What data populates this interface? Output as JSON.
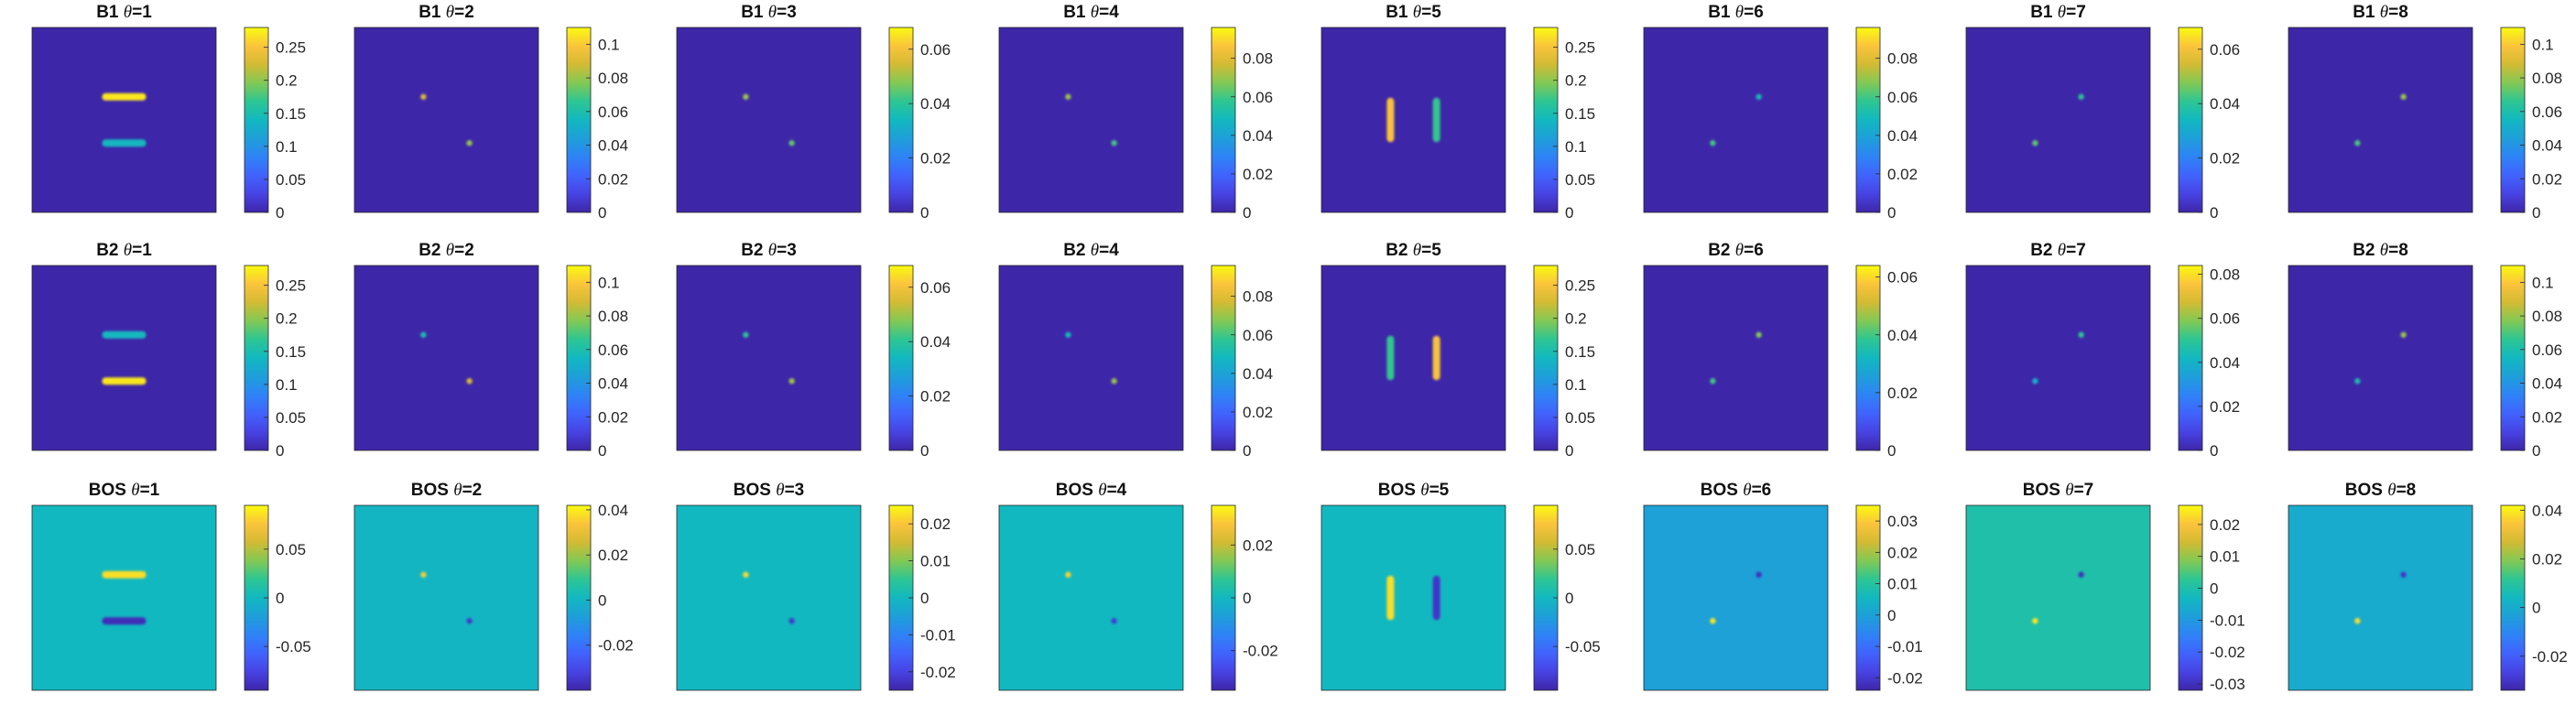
{
  "chart_data": {
    "type": "heatmap",
    "layout": "3 rows x 8 columns of square image panels, each with its own vertical colorbar on the right",
    "colormap": "parula",
    "axes_ticks_visible": false,
    "rows": [
      {
        "label": "B1",
        "panels": [
          {
            "theta": "1",
            "background": 0,
            "clim": [
              0,
              0.28
            ],
            "cbar_ticks": [
              "0",
              "0.05",
              "0.1",
              "0.15",
              "0.2",
              "0.25"
            ],
            "cbar_tick_values": [
              0,
              0.05,
              0.1,
              0.15,
              0.2,
              0.25
            ],
            "features": [
              {
                "shape": "hbar",
                "cx": 0.5,
                "cy": 0.375,
                "len": 0.24,
                "value": 0.27
              },
              {
                "shape": "hbar",
                "cx": 0.5,
                "cy": 0.625,
                "len": 0.24,
                "value": 0.14
              }
            ]
          },
          {
            "theta": "2",
            "background": 0,
            "clim": [
              0,
              0.11
            ],
            "cbar_ticks": [
              "0",
              "0.02",
              "0.04",
              "0.06",
              "0.08",
              "0.1"
            ],
            "cbar_tick_values": [
              0,
              0.02,
              0.04,
              0.06,
              0.08,
              0.1
            ],
            "features": [
              {
                "shape": "dot",
                "cx": 0.375,
                "cy": 0.375,
                "value": 0.09
              },
              {
                "shape": "dot",
                "cx": 0.625,
                "cy": 0.625,
                "value": 0.08
              }
            ]
          },
          {
            "theta": "3",
            "background": 0,
            "clim": [
              0,
              0.068
            ],
            "cbar_ticks": [
              "0",
              "0.02",
              "0.04",
              "0.06"
            ],
            "cbar_tick_values": [
              0,
              0.02,
              0.04,
              0.06
            ],
            "features": [
              {
                "shape": "dot",
                "cx": 0.375,
                "cy": 0.375,
                "value": 0.05
              },
              {
                "shape": "dot",
                "cx": 0.625,
                "cy": 0.625,
                "value": 0.045
              }
            ]
          },
          {
            "theta": "4",
            "background": 0,
            "clim": [
              0,
              0.096
            ],
            "cbar_ticks": [
              "0",
              "0.02",
              "0.04",
              "0.06",
              "0.08"
            ],
            "cbar_tick_values": [
              0,
              0.02,
              0.04,
              0.06,
              0.08
            ],
            "features": [
              {
                "shape": "dot",
                "cx": 0.375,
                "cy": 0.375,
                "value": 0.07
              },
              {
                "shape": "dot",
                "cx": 0.625,
                "cy": 0.625,
                "value": 0.06
              }
            ]
          },
          {
            "theta": "5",
            "background": 0,
            "clim": [
              0,
              0.28
            ],
            "cbar_ticks": [
              "0",
              "0.05",
              "0.1",
              "0.15",
              "0.2",
              "0.25"
            ],
            "cbar_tick_values": [
              0,
              0.05,
              0.1,
              0.15,
              0.2,
              0.25
            ],
            "features": [
              {
                "shape": "vbar",
                "cx": 0.375,
                "cy": 0.5,
                "len": 0.24,
                "value": 0.25
              },
              {
                "shape": "vbar",
                "cx": 0.625,
                "cy": 0.5,
                "len": 0.24,
                "value": 0.17
              }
            ]
          },
          {
            "theta": "6",
            "background": 0,
            "clim": [
              0,
              0.096
            ],
            "cbar_ticks": [
              "0",
              "0.02",
              "0.04",
              "0.06",
              "0.08"
            ],
            "cbar_tick_values": [
              0,
              0.02,
              0.04,
              0.06,
              0.08
            ],
            "features": [
              {
                "shape": "dot",
                "cx": 0.625,
                "cy": 0.375,
                "value": 0.05
              },
              {
                "shape": "dot",
                "cx": 0.375,
                "cy": 0.625,
                "value": 0.06
              }
            ]
          },
          {
            "theta": "7",
            "background": 0,
            "clim": [
              0,
              0.068
            ],
            "cbar_ticks": [
              "0",
              "0.02",
              "0.04",
              "0.06"
            ],
            "cbar_tick_values": [
              0,
              0.02,
              0.04,
              0.06
            ],
            "features": [
              {
                "shape": "dot",
                "cx": 0.625,
                "cy": 0.375,
                "value": 0.04
              },
              {
                "shape": "dot",
                "cx": 0.375,
                "cy": 0.625,
                "value": 0.045
              }
            ]
          },
          {
            "theta": "8",
            "background": 0,
            "clim": [
              0,
              0.11
            ],
            "cbar_ticks": [
              "0",
              "0.02",
              "0.04",
              "0.06",
              "0.08",
              "0.1"
            ],
            "cbar_tick_values": [
              0,
              0.02,
              0.04,
              0.06,
              0.08,
              0.1
            ],
            "features": [
              {
                "shape": "dot",
                "cx": 0.625,
                "cy": 0.375,
                "value": 0.08
              },
              {
                "shape": "dot",
                "cx": 0.375,
                "cy": 0.625,
                "value": 0.07
              }
            ]
          }
        ]
      },
      {
        "label": "B2",
        "panels": [
          {
            "theta": "1",
            "background": 0,
            "clim": [
              0,
              0.28
            ],
            "cbar_ticks": [
              "0",
              "0.05",
              "0.1",
              "0.15",
              "0.2",
              "0.25"
            ],
            "cbar_tick_values": [
              0,
              0.05,
              0.1,
              0.15,
              0.2,
              0.25
            ],
            "features": [
              {
                "shape": "hbar",
                "cx": 0.5,
                "cy": 0.375,
                "len": 0.24,
                "value": 0.14
              },
              {
                "shape": "hbar",
                "cx": 0.5,
                "cy": 0.625,
                "len": 0.24,
                "value": 0.27
              }
            ]
          },
          {
            "theta": "2",
            "background": 0,
            "clim": [
              0,
              0.11
            ],
            "cbar_ticks": [
              "0",
              "0.02",
              "0.04",
              "0.06",
              "0.08",
              "0.1"
            ],
            "cbar_tick_values": [
              0,
              0.02,
              0.04,
              0.06,
              0.08,
              0.1
            ],
            "features": [
              {
                "shape": "dot",
                "cx": 0.375,
                "cy": 0.375,
                "value": 0.06
              },
              {
                "shape": "dot",
                "cx": 0.625,
                "cy": 0.625,
                "value": 0.09
              }
            ]
          },
          {
            "theta": "3",
            "background": 0,
            "clim": [
              0,
              0.068
            ],
            "cbar_ticks": [
              "0",
              "0.02",
              "0.04",
              "0.06"
            ],
            "cbar_tick_values": [
              0,
              0.02,
              0.04,
              0.06
            ],
            "features": [
              {
                "shape": "dot",
                "cx": 0.375,
                "cy": 0.375,
                "value": 0.04
              },
              {
                "shape": "dot",
                "cx": 0.625,
                "cy": 0.625,
                "value": 0.05
              }
            ]
          },
          {
            "theta": "4",
            "background": 0,
            "clim": [
              0,
              0.096
            ],
            "cbar_ticks": [
              "0",
              "0.02",
              "0.04",
              "0.06",
              "0.08"
            ],
            "cbar_tick_values": [
              0,
              0.02,
              0.04,
              0.06,
              0.08
            ],
            "features": [
              {
                "shape": "dot",
                "cx": 0.375,
                "cy": 0.375,
                "value": 0.05
              },
              {
                "shape": "dot",
                "cx": 0.625,
                "cy": 0.625,
                "value": 0.07
              }
            ]
          },
          {
            "theta": "5",
            "background": 0,
            "clim": [
              0,
              0.28
            ],
            "cbar_ticks": [
              "0",
              "0.05",
              "0.1",
              "0.15",
              "0.2",
              "0.25"
            ],
            "cbar_tick_values": [
              0,
              0.05,
              0.1,
              0.15,
              0.2,
              0.25
            ],
            "features": [
              {
                "shape": "vbar",
                "cx": 0.375,
                "cy": 0.5,
                "len": 0.24,
                "value": 0.17
              },
              {
                "shape": "vbar",
                "cx": 0.625,
                "cy": 0.5,
                "len": 0.24,
                "value": 0.25
              }
            ]
          },
          {
            "theta": "6",
            "background": 0,
            "clim": [
              0,
              0.064
            ],
            "cbar_ticks": [
              "0",
              "0.02",
              "0.04",
              "0.06"
            ],
            "cbar_tick_values": [
              0,
              0.02,
              0.04,
              0.06
            ],
            "features": [
              {
                "shape": "dot",
                "cx": 0.625,
                "cy": 0.375,
                "value": 0.045
              },
              {
                "shape": "dot",
                "cx": 0.375,
                "cy": 0.625,
                "value": 0.04
              }
            ]
          },
          {
            "theta": "7",
            "background": 0,
            "clim": [
              0,
              0.084
            ],
            "cbar_ticks": [
              "0",
              "0.02",
              "0.04",
              "0.06",
              "0.08"
            ],
            "cbar_tick_values": [
              0,
              0.02,
              0.04,
              0.06,
              0.08
            ],
            "features": [
              {
                "shape": "dot",
                "cx": 0.625,
                "cy": 0.375,
                "value": 0.05
              },
              {
                "shape": "dot",
                "cx": 0.375,
                "cy": 0.625,
                "value": 0.04
              }
            ]
          },
          {
            "theta": "8",
            "background": 0,
            "clim": [
              0,
              0.11
            ],
            "cbar_ticks": [
              "0",
              "0.02",
              "0.04",
              "0.06",
              "0.08",
              "0.1"
            ],
            "cbar_tick_values": [
              0,
              0.02,
              0.04,
              0.06,
              0.08,
              0.1
            ],
            "features": [
              {
                "shape": "dot",
                "cx": 0.625,
                "cy": 0.375,
                "value": 0.08
              },
              {
                "shape": "dot",
                "cx": 0.375,
                "cy": 0.625,
                "value": 0.06
              }
            ]
          }
        ]
      },
      {
        "label": "BOS",
        "panels": [
          {
            "theta": "1",
            "background": 0,
            "clim": [
              -0.095,
              0.095
            ],
            "cbar_ticks": [
              "-0.05",
              "0",
              "0.05"
            ],
            "cbar_tick_values": [
              -0.05,
              0,
              0.05
            ],
            "features": [
              {
                "shape": "hbar",
                "cx": 0.5,
                "cy": 0.375,
                "len": 0.24,
                "value": 0.085
              },
              {
                "shape": "hbar",
                "cx": 0.5,
                "cy": 0.625,
                "len": 0.24,
                "value": -0.09
              }
            ]
          },
          {
            "theta": "2",
            "background": 0,
            "clim": [
              -0.04,
              0.042
            ],
            "cbar_ticks": [
              "-0.02",
              "0",
              "0.02",
              "0.04"
            ],
            "cbar_tick_values": [
              -0.02,
              0,
              0.02,
              0.04
            ],
            "features": [
              {
                "shape": "dot",
                "cx": 0.375,
                "cy": 0.375,
                "value": 0.035
              },
              {
                "shape": "dot",
                "cx": 0.625,
                "cy": 0.625,
                "value": -0.035
              }
            ]
          },
          {
            "theta": "3",
            "background": 0,
            "clim": [
              -0.025,
              0.025
            ],
            "cbar_ticks": [
              "-0.02",
              "-0.01",
              "0",
              "0.01",
              "0.02"
            ],
            "cbar_tick_values": [
              -0.02,
              -0.01,
              0,
              0.01,
              0.02
            ],
            "features": [
              {
                "shape": "dot",
                "cx": 0.375,
                "cy": 0.375,
                "value": 0.022
              },
              {
                "shape": "dot",
                "cx": 0.625,
                "cy": 0.625,
                "value": -0.022
              }
            ]
          },
          {
            "theta": "4",
            "background": 0,
            "clim": [
              -0.035,
              0.035
            ],
            "cbar_ticks": [
              "-0.02",
              "0",
              "0.02"
            ],
            "cbar_tick_values": [
              -0.02,
              0,
              0.02
            ],
            "features": [
              {
                "shape": "dot",
                "cx": 0.375,
                "cy": 0.375,
                "value": 0.03
              },
              {
                "shape": "dot",
                "cx": 0.625,
                "cy": 0.625,
                "value": -0.03
              }
            ]
          },
          {
            "theta": "5",
            "background": 0,
            "clim": [
              -0.095,
              0.095
            ],
            "cbar_ticks": [
              "-0.05",
              "0",
              "0.05"
            ],
            "cbar_tick_values": [
              -0.05,
              0,
              0.05
            ],
            "features": [
              {
                "shape": "vbar",
                "cx": 0.375,
                "cy": 0.5,
                "len": 0.24,
                "value": 0.085
              },
              {
                "shape": "vbar",
                "cx": 0.625,
                "cy": 0.5,
                "len": 0.24,
                "value": -0.085
              }
            ]
          },
          {
            "theta": "6",
            "background": 0,
            "clim": [
              -0.024,
              0.035
            ],
            "cbar_ticks": [
              "-0.02",
              "-0.01",
              "0",
              "0.01",
              "0.02",
              "0.03"
            ],
            "cbar_tick_values": [
              -0.02,
              -0.01,
              0,
              0.01,
              0.02,
              0.03
            ],
            "features": [
              {
                "shape": "dot",
                "cx": 0.625,
                "cy": 0.375,
                "value": -0.022
              },
              {
                "shape": "dot",
                "cx": 0.375,
                "cy": 0.625,
                "value": 0.033
              }
            ]
          },
          {
            "theta": "7",
            "background": 0,
            "clim": [
              -0.032,
              0.026
            ],
            "cbar_ticks": [
              "-0.03",
              "-0.02",
              "-0.01",
              "0",
              "0.01",
              "0.02"
            ],
            "cbar_tick_values": [
              -0.03,
              -0.02,
              -0.01,
              0,
              0.01,
              0.02
            ],
            "features": [
              {
                "shape": "dot",
                "cx": 0.625,
                "cy": 0.375,
                "value": -0.03
              },
              {
                "shape": "dot",
                "cx": 0.375,
                "cy": 0.625,
                "value": 0.024
              }
            ]
          },
          {
            "theta": "8",
            "background": 0,
            "clim": [
              -0.034,
              0.042
            ],
            "cbar_ticks": [
              "-0.02",
              "0",
              "0.02",
              "0.04"
            ],
            "cbar_tick_values": [
              -0.02,
              0,
              0.02,
              0.04
            ],
            "features": [
              {
                "shape": "dot",
                "cx": 0.625,
                "cy": 0.375,
                "value": -0.03
              },
              {
                "shape": "dot",
                "cx": 0.375,
                "cy": 0.625,
                "value": 0.038
              }
            ]
          }
        ]
      }
    ]
  }
}
